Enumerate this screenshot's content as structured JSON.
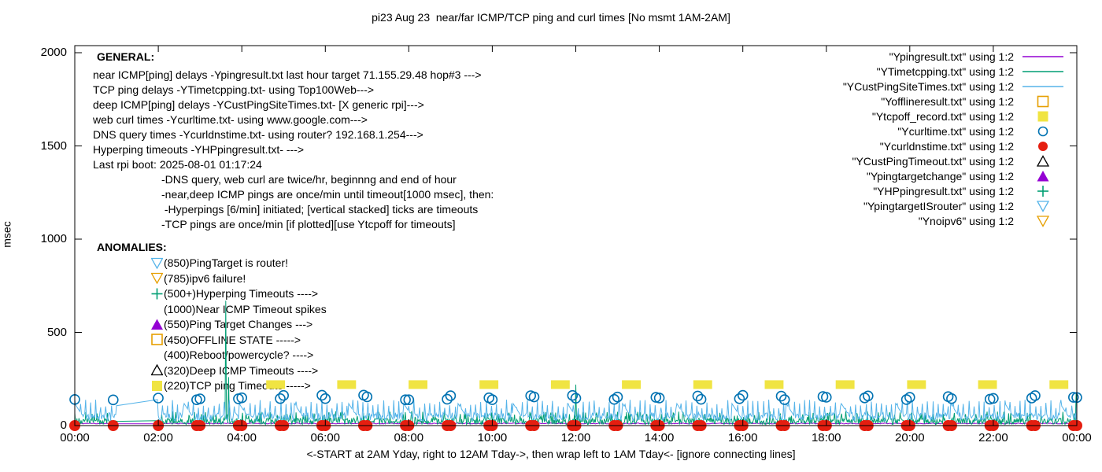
{
  "title": "pi23 Aug 23  near/far ICMP/TCP ping and curl times [No msmt 1AM-2AM]",
  "caption": "<-START at 2AM Yday, right to 12AM Tday->, then wrap left to 1AM Tday<- [ignore connecting lines]",
  "general": {
    "heading": "GENERAL:",
    "lines": [
      "near ICMP[ping] delays -Ypingresult.txt last hour target 71.155.29.48 hop#3 --->",
      "TCP ping delays -YTimetcpping.txt- using Top100Web--->",
      "deep ICMP[ping] delays -YCustPingSiteTimes.txt- [X generic rpi]--->",
      "web curl times -Ycurltime.txt- using www.google.com--->",
      "DNS query times -Ycurldnstime.txt- using router? 192.168.1.254--->",
      "Hyperping timeouts -YHPpingresult.txt- --->",
      "Last rpi boot: 2025-08-01 01:17:24"
    ],
    "notes": [
      "-DNS query, web curl are twice/hr, beginnng and end of hour",
      "-near,deep ICMP pings are once/min until timeout[1000 msec], then:",
      " -Hyperpings [6/min] initiated; [vertical stacked] ticks are timeouts",
      "-TCP pings are once/min [if plotted][use Ytcpoff for timeouts]"
    ]
  },
  "anomalies": {
    "heading": "ANOMALIES:",
    "items": [
      {
        "marker": "triangle-down-open",
        "color": "#56B4E9",
        "label": "(850)PingTarget is router!"
      },
      {
        "marker": "triangle-down-open",
        "color": "#E69F00",
        "label": "(785)ipv6 failure!"
      },
      {
        "marker": "plus",
        "color": "#009E73",
        "label": "(500+)Hyperping Timeouts ---->"
      },
      {
        "marker": "none",
        "color": "",
        "label": "(1000)Near ICMP Timeout spikes"
      },
      {
        "marker": "triangle-up-filled",
        "color": "#9400D3",
        "label": "(550)Ping Target Changes --->"
      },
      {
        "marker": "square-open",
        "color": "#E69F00",
        "label": "(450)OFFLINE STATE ----->"
      },
      {
        "marker": "none",
        "color": "",
        "label": "(400)Reboot/powercycle? ---->"
      },
      {
        "marker": "triangle-up-open",
        "color": "#000000",
        "label": "(320)Deep ICMP Timeouts ---->"
      },
      {
        "marker": "square-filled",
        "color": "#F0E442",
        "label": "(220)TCP ping Timeouts ----->"
      }
    ]
  },
  "legend": {
    "items": [
      {
        "label": "\"Ypingresult.txt\" using 1:2",
        "marker": "line",
        "color": "#9400D3"
      },
      {
        "label": "\"YTimetcpping.txt\" using 1:2",
        "marker": "line",
        "color": "#009E73"
      },
      {
        "label": "\"YCustPingSiteTimes.txt\" using 1:2",
        "marker": "line",
        "color": "#56B4E9"
      },
      {
        "label": "\"Yofflineresult.txt\" using 1:2",
        "marker": "square-open",
        "color": "#E69F00"
      },
      {
        "label": "\"Ytcpoff_record.txt\" using 1:2",
        "marker": "square-filled",
        "color": "#F0E442"
      },
      {
        "label": "\"Ycurltime.txt\" using 1:2",
        "marker": "circle-open",
        "color": "#0072B2"
      },
      {
        "label": "\"Ycurldnstime.txt\" using 1:2",
        "marker": "circle-filled",
        "color": "#E51E10"
      },
      {
        "label": "\"YCustPingTimeout.txt\" using 1:2",
        "marker": "triangle-up-open",
        "color": "#000000"
      },
      {
        "label": "\"Ypingtargetchange\" using 1:2",
        "marker": "triangle-up-filled",
        "color": "#9400D3"
      },
      {
        "label": "\"YHPpingresult.txt\" using 1:2",
        "marker": "plus",
        "color": "#009E73"
      },
      {
        "label": "\"YpingtargetISrouter\" using 1:2",
        "marker": "triangle-down-open",
        "color": "#56B4E9"
      },
      {
        "label": "\"Ynoipv6\" using 1:2",
        "marker": "triangle-down-open",
        "color": "#E69F00"
      }
    ]
  },
  "chart_data": {
    "type": "line",
    "x_axis": {
      "ticks": [
        "00:00",
        "02:00",
        "04:00",
        "06:00",
        "08:00",
        "10:00",
        "12:00",
        "14:00",
        "16:00",
        "18:00",
        "20:00",
        "22:00",
        "00:00"
      ],
      "range_hours": [
        0,
        24
      ]
    },
    "y_axis": {
      "label": "msec",
      "ticks": [
        0,
        500,
        1000,
        1500,
        2000
      ],
      "range": [
        0,
        2000
      ]
    },
    "no_measurement_gap_hours": [
      1.02,
      1.98
    ],
    "series": [
      {
        "name": "Ypingresult.txt",
        "kind": "line",
        "color": "#9400D3",
        "profile": {
          "base_msec": 9,
          "noise_msec": 5,
          "sample_min": 2
        }
      },
      {
        "name": "YTimetcpping.txt",
        "kind": "line",
        "color": "#009E73",
        "profile": {
          "base_msec": 6,
          "noise_msec": 34,
          "sample_min": 1
        },
        "spikes": [
          [
            3.62,
            670
          ],
          [
            3.68,
            260
          ],
          [
            12.0,
            220
          ],
          [
            23.98,
            170
          ]
        ]
      },
      {
        "name": "YCustPingSiteTimes.txt",
        "kind": "line",
        "color": "#56B4E9",
        "profile": {
          "base_msec": 25,
          "noise_msec": 45,
          "sample_min": 1.2,
          "tick_spike_period_h": 0.123,
          "tick_spike_msec": [
            92,
            140
          ],
          "sawtooth_period_h": 1.31,
          "sawtooth_peak_msec": 118
        }
      },
      {
        "name": "Yofflineresult.txt",
        "kind": "points",
        "marker": "square-open",
        "color": "#E69F00",
        "points": []
      },
      {
        "name": "Ytcpoff_record.txt",
        "kind": "points",
        "marker": "square-filled",
        "color": "#F0E442",
        "value_msec": 220,
        "block_width_min": 27,
        "times_h": [
          4.81,
          6.51,
          8.22,
          9.92,
          11.63,
          13.33,
          15.04,
          16.75,
          18.45,
          20.16,
          21.86,
          23.57
        ]
      },
      {
        "name": "Ycurltime.txt",
        "kind": "points",
        "marker": "circle-open",
        "color": "#0072B2",
        "value_msec": 150,
        "jitter_msec": 28,
        "cadence": {
          "desc": "twice/hr at :55 and :00",
          "singles_h": [
            0.0,
            0.92,
            2.0
          ],
          "pairs_start_h": 3,
          "pairs_end_h": 24,
          "pair_offset_h": 0.08
        }
      },
      {
        "name": "Ycurldnstime.txt",
        "kind": "points",
        "marker": "circle-filled",
        "color": "#E51E10",
        "value_msec": 0,
        "cadence": {
          "desc": "twice/hr at :55 and :00",
          "singles_h": [
            0.0,
            0.92,
            2.0
          ],
          "pairs_start_h": 3,
          "pairs_end_h": 24,
          "pair_offset_h": 0.08
        }
      },
      {
        "name": "YCustPingTimeout.txt",
        "kind": "points",
        "marker": "triangle-up-open",
        "color": "#000000",
        "points": []
      },
      {
        "name": "Ypingtargetchange",
        "kind": "points",
        "marker": "triangle-up-filled",
        "color": "#9400D3",
        "points": []
      },
      {
        "name": "YHPpingresult.txt",
        "kind": "points",
        "marker": "plus",
        "color": "#009E73",
        "points": []
      },
      {
        "name": "YpingtargetISrouter",
        "kind": "points",
        "marker": "triangle-down-open",
        "color": "#56B4E9",
        "points": []
      },
      {
        "name": "Ynoipv6",
        "kind": "points",
        "marker": "triangle-down-open",
        "color": "#E69F00",
        "points": []
      }
    ]
  }
}
